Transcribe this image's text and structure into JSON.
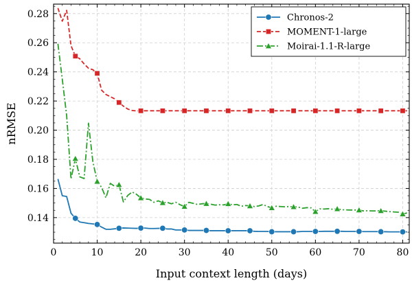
{
  "chart_data": {
    "type": "line",
    "xlabel": "Input context length (days)",
    "ylabel": "nRMSE",
    "xlim": [
      0,
      81.5
    ],
    "ylim": [
      0.1225,
      0.2865
    ],
    "xticks": [
      0,
      10,
      20,
      30,
      40,
      50,
      60,
      70,
      80
    ],
    "yticks": [
      0.14,
      0.16,
      0.18,
      0.2,
      0.22,
      0.24,
      0.26,
      0.28
    ],
    "ytick_labels": [
      "0.14",
      "0.16",
      "0.18",
      "0.20",
      "0.22",
      "0.24",
      "0.26",
      "0.28"
    ],
    "grid": true,
    "legend_position": "top-right",
    "series": [
      {
        "name": "Chronos-2",
        "color": "#1f77b4",
        "line_style": "solid",
        "marker": "circle",
        "marker_every": 5,
        "x": [
          1,
          2,
          3,
          4,
          5,
          6,
          7,
          8,
          9,
          10,
          11,
          12,
          13,
          14,
          15,
          16,
          17,
          18,
          19,
          20,
          21,
          22,
          23,
          24,
          25,
          26,
          27,
          28,
          29,
          30,
          31,
          32,
          33,
          34,
          35,
          36,
          37,
          38,
          39,
          40,
          41,
          42,
          43,
          44,
          45,
          46,
          47,
          48,
          49,
          50,
          51,
          52,
          53,
          54,
          55,
          56,
          57,
          58,
          59,
          60,
          61,
          62,
          63,
          64,
          65,
          66,
          67,
          68,
          69,
          70,
          71,
          72,
          73,
          74,
          75,
          76,
          77,
          78,
          79,
          80,
          81
        ],
        "y": [
          0.1665,
          0.155,
          0.1545,
          0.143,
          0.1395,
          0.137,
          0.1365,
          0.136,
          0.1357,
          0.1353,
          0.1335,
          0.132,
          0.132,
          0.1323,
          0.1327,
          0.1329,
          0.1328,
          0.1327,
          0.1326,
          0.1328,
          0.1328,
          0.1325,
          0.1325,
          0.1326,
          0.1327,
          0.1322,
          0.1322,
          0.1315,
          0.1315,
          0.1315,
          0.1312,
          0.1312,
          0.1312,
          0.1312,
          0.1312,
          0.131,
          0.131,
          0.131,
          0.131,
          0.131,
          0.131,
          0.131,
          0.131,
          0.131,
          0.131,
          0.1306,
          0.1305,
          0.1305,
          0.1305,
          0.1303,
          0.1303,
          0.1303,
          0.1303,
          0.1303,
          0.1303,
          0.1303,
          0.1305,
          0.1305,
          0.1305,
          0.1305,
          0.1305,
          0.1306,
          0.1306,
          0.1306,
          0.1306,
          0.1306,
          0.1305,
          0.1305,
          0.1305,
          0.1305,
          0.1304,
          0.1304,
          0.1304,
          0.1304,
          0.1303,
          0.1303,
          0.1302,
          0.1302,
          0.1302,
          0.1302,
          0.1302
        ]
      },
      {
        "name": "MOMENT-1-large",
        "color": "#d62728",
        "line_style": "dashed",
        "marker": "square",
        "marker_every": 5,
        "x": [
          1,
          2,
          3,
          4,
          5,
          6,
          7,
          8,
          9,
          10,
          11,
          12,
          13,
          14,
          15,
          16,
          17,
          18,
          19,
          20,
          21,
          22,
          23,
          24,
          25,
          26,
          27,
          28,
          29,
          30,
          31,
          32,
          33,
          34,
          35,
          36,
          37,
          38,
          39,
          40,
          41,
          42,
          43,
          44,
          45,
          46,
          47,
          48,
          49,
          50,
          51,
          52,
          53,
          54,
          55,
          56,
          57,
          58,
          59,
          60,
          61,
          62,
          63,
          64,
          65,
          66,
          67,
          68,
          69,
          70,
          71,
          72,
          73,
          74,
          75,
          76,
          77,
          78,
          79,
          80,
          81
        ],
        "y": [
          0.2838,
          0.2748,
          0.2822,
          0.258,
          0.2508,
          0.249,
          0.2455,
          0.2425,
          0.2415,
          0.239,
          0.2275,
          0.2245,
          0.223,
          0.2215,
          0.219,
          0.2165,
          0.2145,
          0.2135,
          0.2132,
          0.2133,
          0.2133,
          0.2133,
          0.2133,
          0.2133,
          0.2133,
          0.2133,
          0.2133,
          0.2133,
          0.2133,
          0.2133,
          0.2133,
          0.2133,
          0.2133,
          0.2133,
          0.2133,
          0.2133,
          0.2133,
          0.2133,
          0.2133,
          0.2133,
          0.2133,
          0.2133,
          0.2133,
          0.2133,
          0.2133,
          0.2133,
          0.2133,
          0.2133,
          0.2133,
          0.2133,
          0.2133,
          0.2133,
          0.2133,
          0.2133,
          0.2133,
          0.2133,
          0.2133,
          0.2133,
          0.2133,
          0.2133,
          0.2133,
          0.2133,
          0.2133,
          0.2133,
          0.2133,
          0.2133,
          0.2133,
          0.2133,
          0.2133,
          0.2133,
          0.2133,
          0.2133,
          0.2133,
          0.2133,
          0.2133,
          0.2133,
          0.2133,
          0.2133,
          0.2133,
          0.2133,
          0.2133
        ]
      },
      {
        "name": "Moirai-1.1-R-large",
        "color": "#2ca02c",
        "line_style": "dashdot",
        "marker": "triangle",
        "marker_every": 5,
        "x": [
          1,
          2,
          3,
          4,
          5,
          6,
          7,
          8,
          9,
          10,
          11,
          12,
          13,
          14,
          15,
          16,
          17,
          18,
          19,
          20,
          21,
          22,
          23,
          24,
          25,
          26,
          27,
          28,
          29,
          30,
          31,
          32,
          33,
          34,
          35,
          36,
          37,
          38,
          39,
          40,
          41,
          42,
          43,
          44,
          45,
          46,
          47,
          48,
          49,
          50,
          51,
          52,
          53,
          54,
          55,
          56,
          57,
          58,
          59,
          60,
          61,
          62,
          63,
          64,
          65,
          66,
          67,
          68,
          69,
          70,
          71,
          72,
          73,
          74,
          75,
          76,
          77,
          78,
          79,
          80,
          81
        ],
        "y": [
          0.2593,
          0.235,
          0.21,
          0.1665,
          0.1805,
          0.168,
          0.1668,
          0.2048,
          0.1785,
          0.1648,
          0.1608,
          0.1536,
          0.1635,
          0.1615,
          0.1626,
          0.1508,
          0.1552,
          0.1576,
          0.156,
          0.1535,
          0.1528,
          0.1525,
          0.1505,
          0.1515,
          0.1502,
          0.1505,
          0.1495,
          0.1505,
          0.1488,
          0.1476,
          0.1505,
          0.1498,
          0.149,
          0.1495,
          0.1496,
          0.1492,
          0.1486,
          0.1488,
          0.1487,
          0.1495,
          0.1488,
          0.149,
          0.1478,
          0.1483,
          0.148,
          0.1476,
          0.148,
          0.149,
          0.1476,
          0.1467,
          0.1478,
          0.1476,
          0.1474,
          0.1476,
          0.1474,
          0.1473,
          0.1464,
          0.1468,
          0.1467,
          0.1441,
          0.146,
          0.1459,
          0.1461,
          0.1457,
          0.146,
          0.1454,
          0.1453,
          0.1452,
          0.1452,
          0.1452,
          0.1446,
          0.1447,
          0.1446,
          0.1446,
          0.1447,
          0.1444,
          0.1441,
          0.1439,
          0.1437,
          0.1425,
          0.1432
        ]
      }
    ]
  }
}
